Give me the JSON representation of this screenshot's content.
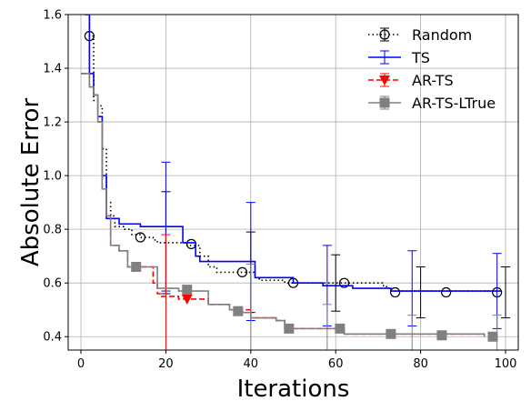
{
  "chart_data": {
    "type": "line",
    "title": "",
    "xlabel": "Iterations",
    "ylabel": "Absolute Error",
    "xlim": [
      -3,
      103
    ],
    "ylim": [
      0.35,
      1.6
    ],
    "xticks": [
      0,
      20,
      40,
      60,
      80,
      100
    ],
    "yticks": [
      0.4,
      0.6,
      0.8,
      1.0,
      1.2,
      1.4,
      1.6
    ],
    "xtick_labels": [
      "0",
      "20",
      "40",
      "60",
      "80",
      "100"
    ],
    "ytick_labels": [
      "0.4",
      "0.6",
      "0.8",
      "1.0",
      "1.2",
      "1.4",
      "1.6"
    ],
    "grid": true,
    "legend_position": "top-right",
    "series": [
      {
        "name": "Random",
        "color": "#000000",
        "style": "dotted",
        "marker": "circle-open",
        "step_points": [
          [
            1,
            1.6
          ],
          [
            2,
            1.52
          ],
          [
            3,
            1.28
          ],
          [
            4,
            1.26
          ],
          [
            5,
            1.1
          ],
          [
            6,
            0.9
          ],
          [
            7,
            0.85
          ],
          [
            8,
            0.81
          ],
          [
            10,
            0.8
          ],
          [
            12,
            0.78
          ],
          [
            14,
            0.77
          ],
          [
            17,
            0.76
          ],
          [
            18,
            0.75
          ],
          [
            24,
            0.75
          ],
          [
            25,
            0.74
          ],
          [
            28,
            0.7
          ],
          [
            30,
            0.66
          ],
          [
            32,
            0.64
          ],
          [
            40,
            0.64
          ],
          [
            41,
            0.62
          ],
          [
            42,
            0.61
          ],
          [
            46,
            0.61
          ],
          [
            48,
            0.6
          ],
          [
            62,
            0.6
          ],
          [
            70,
            0.6
          ],
          [
            71,
            0.59
          ],
          [
            72,
            0.58
          ],
          [
            73,
            0.57
          ],
          [
            98,
            0.565
          ]
        ],
        "markers": [
          [
            2,
            1.52
          ],
          [
            14,
            0.77
          ],
          [
            26,
            0.745
          ],
          [
            38,
            0.64
          ],
          [
            50,
            0.6
          ],
          [
            62,
            0.6
          ],
          [
            74,
            0.565
          ],
          [
            86,
            0.565
          ],
          [
            98,
            0.565
          ]
        ],
        "errorbars": [
          [
            20,
            0.75,
            0.19
          ],
          [
            40,
            0.64,
            0.15
          ],
          [
            60,
            0.6,
            0.105
          ],
          [
            80,
            0.565,
            0.095
          ],
          [
            100,
            0.565,
            0.095
          ]
        ]
      },
      {
        "name": "TS",
        "color": "#0000ff",
        "style": "solid",
        "marker": "none",
        "step_points": [
          [
            1,
            1.6
          ],
          [
            2,
            1.38
          ],
          [
            3,
            1.3
          ],
          [
            4,
            1.22
          ],
          [
            5,
            1.0
          ],
          [
            6,
            0.84
          ],
          [
            9,
            0.82
          ],
          [
            13,
            0.82
          ],
          [
            14,
            0.81
          ],
          [
            23,
            0.81
          ],
          [
            24,
            0.75
          ],
          [
            27,
            0.7
          ],
          [
            28,
            0.68
          ],
          [
            40,
            0.68
          ],
          [
            41,
            0.62
          ],
          [
            50,
            0.6
          ],
          [
            55,
            0.6
          ],
          [
            57,
            0.59
          ],
          [
            63,
            0.59
          ],
          [
            64,
            0.58
          ],
          [
            72,
            0.58
          ],
          [
            73,
            0.57
          ],
          [
            99,
            0.57
          ]
        ],
        "markers": [],
        "errorbars": [
          [
            20,
            0.81,
            0.24
          ],
          [
            40,
            0.68,
            0.22
          ],
          [
            58,
            0.59,
            0.15
          ],
          [
            78,
            0.58,
            0.14
          ],
          [
            98,
            0.57,
            0.14
          ]
        ]
      },
      {
        "name": "AR-TS",
        "color": "#ff0000",
        "style": "dashed",
        "marker": "triangle-down",
        "step_points": [
          [
            0,
            1.38
          ],
          [
            1,
            1.38
          ],
          [
            2,
            1.33
          ],
          [
            3,
            1.3
          ],
          [
            4,
            1.2
          ],
          [
            5,
            0.95
          ],
          [
            6,
            0.85
          ],
          [
            7,
            0.74
          ],
          [
            9,
            0.72
          ],
          [
            11,
            0.66
          ],
          [
            16,
            0.66
          ],
          [
            17,
            0.6
          ],
          [
            18,
            0.56
          ],
          [
            19,
            0.55
          ],
          [
            22,
            0.55
          ],
          [
            23,
            0.54
          ],
          [
            28,
            0.54
          ],
          [
            30,
            0.52
          ],
          [
            34,
            0.52
          ],
          [
            35,
            0.5
          ],
          [
            38,
            0.5
          ],
          [
            40,
            0.47
          ],
          [
            46,
            0.46
          ],
          [
            48,
            0.43
          ],
          [
            60,
            0.43
          ],
          [
            62,
            0.41
          ],
          [
            95,
            0.4
          ]
        ],
        "markers": [
          [
            25,
            0.54
          ]
        ],
        "errorbars": [
          [
            20,
            0.56,
            0.22
          ]
        ]
      },
      {
        "name": "AR-TS-LTrue",
        "color": "#808080",
        "style": "solid",
        "marker": "square",
        "step_points": [
          [
            0,
            1.38
          ],
          [
            1,
            1.38
          ],
          [
            2,
            1.33
          ],
          [
            3,
            1.3
          ],
          [
            4,
            1.2
          ],
          [
            5,
            0.95
          ],
          [
            6,
            0.85
          ],
          [
            7,
            0.74
          ],
          [
            9,
            0.72
          ],
          [
            11,
            0.66
          ],
          [
            17,
            0.66
          ],
          [
            18,
            0.58
          ],
          [
            22,
            0.58
          ],
          [
            23,
            0.57
          ],
          [
            28,
            0.57
          ],
          [
            30,
            0.52
          ],
          [
            34,
            0.52
          ],
          [
            35,
            0.5
          ],
          [
            38,
            0.49
          ],
          [
            40,
            0.47
          ],
          [
            46,
            0.46
          ],
          [
            48,
            0.43
          ],
          [
            60,
            0.43
          ],
          [
            62,
            0.41
          ],
          [
            95,
            0.4
          ]
        ],
        "markers": [
          [
            13,
            0.66
          ],
          [
            25,
            0.575
          ],
          [
            37,
            0.495
          ],
          [
            49,
            0.43
          ],
          [
            61,
            0.43
          ],
          [
            73,
            0.41
          ],
          [
            85,
            0.405
          ],
          [
            97,
            0.4
          ]
        ],
        "errorbars": [
          [
            40,
            0.47,
            0.2
          ],
          [
            58,
            0.43,
            0.09
          ],
          [
            78,
            0.41,
            0.07
          ],
          [
            98,
            0.4,
            0.08
          ]
        ]
      }
    ]
  }
}
